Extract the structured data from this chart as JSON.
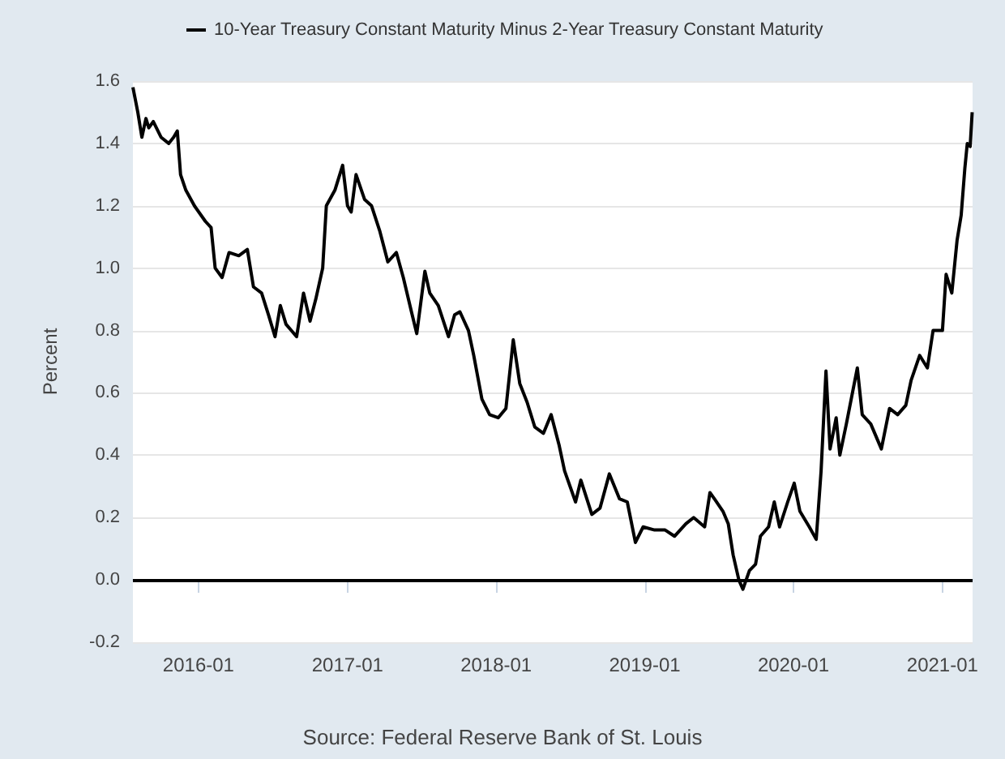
{
  "chart_data": {
    "type": "line",
    "series": [
      {
        "name": "10-Year Treasury Constant Maturity Minus 2-Year Treasury Constant Maturity",
        "color": "#000000",
        "x": [
          "2015-07-24",
          "2015-08-05",
          "2015-08-15",
          "2015-08-25",
          "2015-09-01",
          "2015-09-12",
          "2015-10-01",
          "2015-10-20",
          "2015-11-01",
          "2015-11-10",
          "2015-11-18",
          "2015-12-01",
          "2015-12-22",
          "2016-01-18",
          "2016-02-01",
          "2016-02-11",
          "2016-02-28",
          "2016-03-16",
          "2016-04-09",
          "2016-04-30",
          "2016-05-15",
          "2016-06-04",
          "2016-06-21",
          "2016-07-07",
          "2016-07-20",
          "2016-08-03",
          "2016-08-16",
          "2016-08-29",
          "2016-09-15",
          "2016-10-01",
          "2016-10-15",
          "2016-11-01",
          "2016-11-10",
          "2016-12-01",
          "2016-12-20",
          "2017-01-01",
          "2017-01-10",
          "2017-01-22",
          "2017-02-12",
          "2017-03-01",
          "2017-03-21",
          "2017-04-10",
          "2017-05-01",
          "2017-05-18",
          "2017-06-07",
          "2017-06-20",
          "2017-07-10",
          "2017-07-22",
          "2017-08-12",
          "2017-09-06",
          "2017-09-21",
          "2017-10-04",
          "2017-10-25",
          "2017-11-07",
          "2017-11-27",
          "2017-12-16",
          "2018-01-06",
          "2018-01-25",
          "2018-02-12",
          "2018-02-28",
          "2018-03-18",
          "2018-04-06",
          "2018-04-27",
          "2018-05-16",
          "2018-06-05",
          "2018-06-18",
          "2018-07-15",
          "2018-07-28",
          "2018-08-24",
          "2018-09-13",
          "2018-10-06",
          "2018-10-31",
          "2018-11-19",
          "2018-12-09",
          "2018-12-28",
          "2019-01-25",
          "2019-02-20",
          "2019-03-15",
          "2019-04-12",
          "2019-05-01",
          "2019-05-28",
          "2019-06-10",
          "2019-06-21",
          "2019-07-12",
          "2019-07-25",
          "2019-08-06",
          "2019-08-20",
          "2019-08-30",
          "2019-09-15",
          "2019-09-30",
          "2019-10-12",
          "2019-11-01",
          "2019-11-15",
          "2019-11-28",
          "2019-12-18",
          "2020-01-03",
          "2020-01-17",
          "2020-02-09",
          "2020-02-26",
          "2020-03-09",
          "2020-03-21",
          "2020-03-31",
          "2020-04-15",
          "2020-04-24",
          "2020-05-10",
          "2020-06-06",
          "2020-06-18",
          "2020-07-09",
          "2020-08-04",
          "2020-08-24",
          "2020-09-13",
          "2020-10-03",
          "2020-10-16",
          "2020-11-06",
          "2020-11-25",
          "2020-12-09",
          "2021-01-01",
          "2021-01-10",
          "2021-01-24",
          "2021-02-06",
          "2021-02-16",
          "2021-02-25",
          "2021-03-03",
          "2021-03-10",
          "2021-03-15"
        ],
        "values": [
          1.58,
          1.5,
          1.42,
          1.48,
          1.45,
          1.47,
          1.42,
          1.4,
          1.42,
          1.44,
          1.3,
          1.25,
          1.2,
          1.15,
          1.13,
          1.0,
          0.97,
          1.05,
          1.04,
          1.06,
          0.94,
          0.92,
          0.85,
          0.78,
          0.88,
          0.82,
          0.8,
          0.78,
          0.92,
          0.83,
          0.9,
          1.0,
          1.2,
          1.25,
          1.33,
          1.2,
          1.18,
          1.3,
          1.22,
          1.2,
          1.12,
          1.02,
          1.05,
          0.97,
          0.86,
          0.79,
          0.99,
          0.92,
          0.88,
          0.78,
          0.85,
          0.86,
          0.8,
          0.72,
          0.58,
          0.53,
          0.52,
          0.55,
          0.77,
          0.63,
          0.57,
          0.49,
          0.47,
          0.53,
          0.43,
          0.35,
          0.25,
          0.32,
          0.21,
          0.23,
          0.34,
          0.26,
          0.25,
          0.12,
          0.17,
          0.16,
          0.16,
          0.14,
          0.18,
          0.2,
          0.17,
          0.28,
          0.26,
          0.22,
          0.18,
          0.08,
          0.0,
          -0.03,
          0.03,
          0.05,
          0.14,
          0.17,
          0.25,
          0.17,
          0.25,
          0.31,
          0.22,
          0.17,
          0.13,
          0.35,
          0.67,
          0.42,
          0.52,
          0.4,
          0.5,
          0.68,
          0.53,
          0.5,
          0.42,
          0.55,
          0.53,
          0.56,
          0.64,
          0.72,
          0.68,
          0.8,
          0.8,
          0.98,
          0.92,
          1.09,
          1.17,
          1.32,
          1.4,
          1.39,
          1.5
        ]
      }
    ],
    "xlim": [
      "2015-07-24",
      "2021-03-16"
    ],
    "xticks": [
      "2016-01",
      "2017-01",
      "2018-01",
      "2019-01",
      "2020-01",
      "2021-01"
    ],
    "ylim": [
      -0.2,
      1.6
    ],
    "yticks": [
      {
        "value": -0.2,
        "label": "-0.2"
      },
      {
        "value": 0,
        "label": "0.0"
      },
      {
        "value": 0.2,
        "label": "0.2"
      },
      {
        "value": 0.4,
        "label": "0.4"
      },
      {
        "value": 0.6,
        "label": "0.6"
      },
      {
        "value": 0.8,
        "label": "0.8"
      },
      {
        "value": 1,
        "label": "1.0"
      },
      {
        "value": 1.2,
        "label": "1.2"
      },
      {
        "value": 1.4,
        "label": "1.4"
      },
      {
        "value": 1.6,
        "label": "1.6"
      }
    ],
    "ylabel": "Percent",
    "grid": "y",
    "legend": "top",
    "ref_lines": [
      {
        "axis": "y",
        "value": 0,
        "color": "#000000"
      }
    ],
    "annotations": [
      "Source: Federal Reserve Bank of St. Louis"
    ]
  }
}
